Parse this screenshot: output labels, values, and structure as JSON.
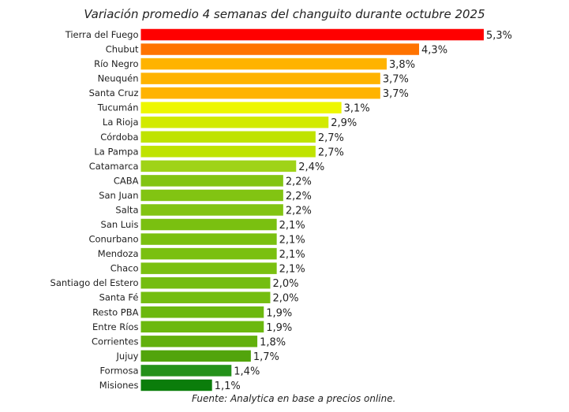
{
  "chart_data": {
    "type": "bar",
    "orientation": "horizontal",
    "title": "Variación promedio 4 semanas del changuito durante octubre 2025",
    "source": "Fuente: Analytica en base a precios online.",
    "categories": [
      "Tierra del Fuego",
      "Chubut",
      "Río Negro",
      "Neuquén",
      "Santa Cruz",
      "Tucumán",
      "La Rioja",
      "Córdoba",
      "La Pampa",
      "Catamarca",
      "CABA",
      "San Juan",
      "Salta",
      "San Luis",
      "Conurbano",
      "Mendoza",
      "Chaco",
      "Santiago del Estero",
      "Santa Fé",
      "Resto PBA",
      "Entre Ríos",
      "Corrientes",
      "Jujuy",
      "Formosa",
      "Misiones"
    ],
    "values": [
      5.3,
      4.3,
      3.8,
      3.7,
      3.7,
      3.1,
      2.9,
      2.7,
      2.7,
      2.4,
      2.2,
      2.2,
      2.2,
      2.1,
      2.1,
      2.1,
      2.1,
      2.0,
      2.0,
      1.9,
      1.9,
      1.8,
      1.7,
      1.4,
      1.1
    ],
    "labels": [
      "5,3%",
      "4,3%",
      "3,8%",
      "3,7%",
      "3,7%",
      "3,1%",
      "2,9%",
      "2,7%",
      "2,7%",
      "2,4%",
      "2,2%",
      "2,2%",
      "2,2%",
      "2,1%",
      "2,1%",
      "2,1%",
      "2,1%",
      "2,0%",
      "2,0%",
      "1,9%",
      "1,9%",
      "1,8%",
      "1,7%",
      "1,4%",
      "1,1%"
    ],
    "colors": [
      "#ff0000",
      "#ff7300",
      "#ffb300",
      "#ffb300",
      "#ffb300",
      "#eef700",
      "#d2ea00",
      "#bfe300",
      "#bfe300",
      "#9fd318",
      "#82c412",
      "#82c412",
      "#82c412",
      "#7ac010",
      "#7ac010",
      "#7ac010",
      "#7ac010",
      "#74bd10",
      "#74bd10",
      "#6cb80e",
      "#6cb80e",
      "#62b00c",
      "#52a40c",
      "#24911a",
      "#0b7d0b"
    ],
    "xlim": [
      0,
      5.3
    ],
    "grid": false,
    "legend": "none"
  }
}
